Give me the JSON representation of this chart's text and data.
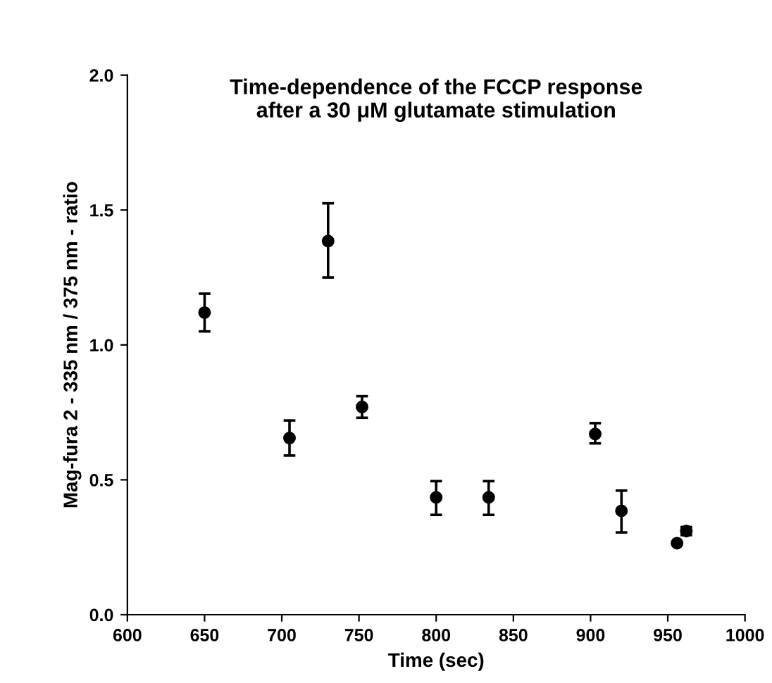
{
  "chart_data": {
    "type": "scatter",
    "title": "Time-dependence of the FCCP response\nafter a 30 μM glutamate stimulation",
    "xlabel": "Time (sec)",
    "ylabel": "Mag-fura 2 - 335 nm / 375 nm - ratio",
    "x": [
      650,
      705,
      730,
      752,
      800,
      834,
      903,
      920,
      956,
      962
    ],
    "values": [
      1.12,
      0.655,
      1.385,
      0.77,
      0.435,
      0.435,
      0.67,
      0.385,
      0.265,
      0.31
    ],
    "errors": [
      [
        1.05,
        1.19
      ],
      [
        0.59,
        0.72
      ],
      [
        1.25,
        1.525
      ],
      [
        0.73,
        0.81
      ],
      [
        0.37,
        0.495
      ],
      [
        0.37,
        0.495
      ],
      [
        0.635,
        0.71
      ],
      [
        0.305,
        0.46
      ],
      null,
      [
        0.295,
        0.325
      ]
    ],
    "color": "#000000",
    "marker": "circle",
    "xlim": [
      600,
      1000
    ],
    "xticks": [
      600,
      650,
      700,
      750,
      800,
      850,
      900,
      950,
      1000
    ],
    "ylim": [
      0,
      2
    ],
    "yticks": [
      {
        "value": 0,
        "label": "0.0"
      },
      {
        "value": 0.5,
        "label": "0.5"
      },
      {
        "value": 1,
        "label": "1.0"
      },
      {
        "value": 1.5,
        "label": "1.5"
      },
      {
        "value": 2,
        "label": "2.0"
      }
    ],
    "grid": false,
    "legend": false
  }
}
